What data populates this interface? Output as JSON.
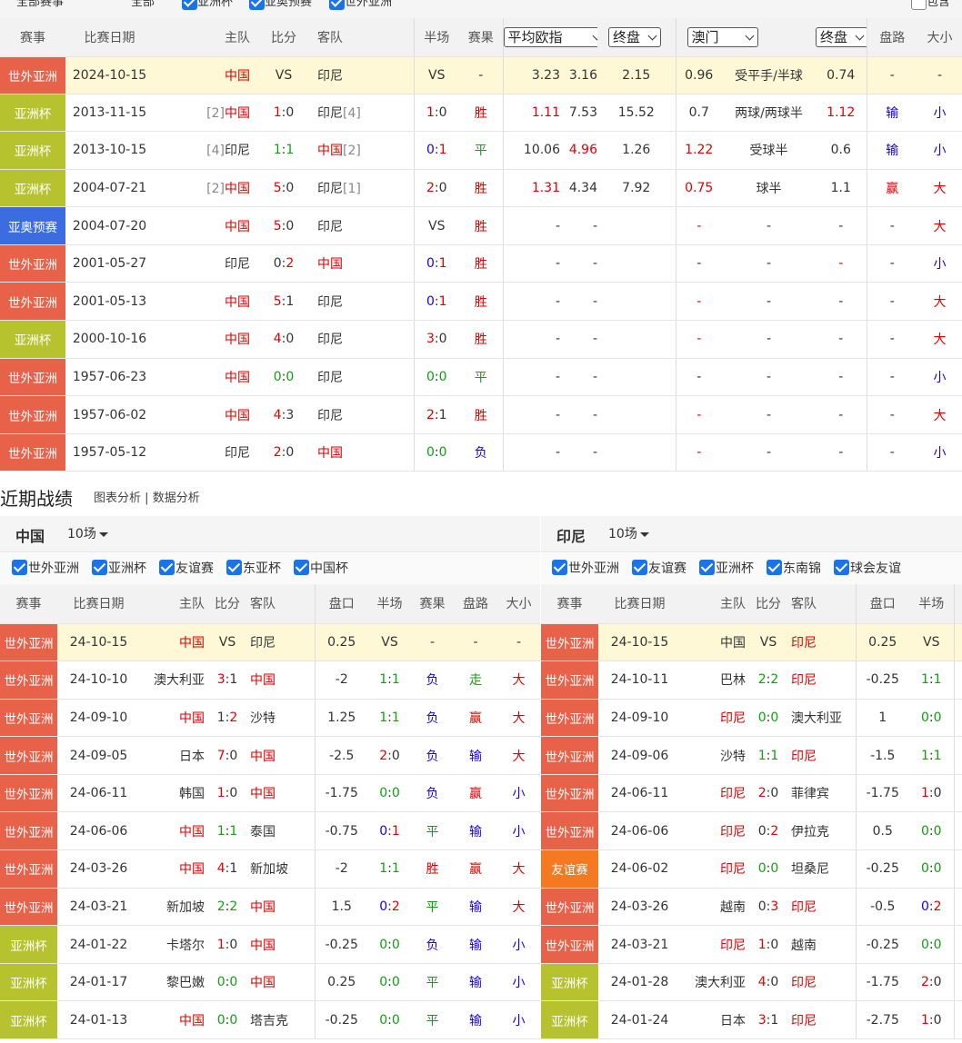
{
  "top_filters": {
    "labels": [
      "全部赛事",
      "全部",
      "亚洲杯",
      "亚奥预赛",
      "世外亚洲",
      "包含"
    ]
  },
  "h2h": {
    "headers": {
      "league": "赛事",
      "date": "比赛日期",
      "home": "主队",
      "score": "比分",
      "away": "客队",
      "half": "半场",
      "result": "赛果",
      "odds_select": "平均欧指",
      "odds_type_1": "终盘",
      "company_select": "澳门",
      "odds_type_2": "终盘",
      "handicap_res": "盘路",
      "ou": "大小"
    },
    "rows": [
      {
        "league": "世外亚洲",
        "date": "2024-10-15",
        "home_rank": "",
        "home": "中国",
        "sh": "VS",
        "sa": "",
        "away": "印尼",
        "away_rank": "",
        "half_h": "VS",
        "half_a": "",
        "result": "-",
        "o1": "3.23",
        "o2": "3.16",
        "o3": "2.15",
        "ah1": "0.96",
        "line": "受平手/半球",
        "ah2": "0.74",
        "hr": "-",
        "ou": "-"
      },
      {
        "league": "亚洲杯",
        "date": "2013-11-15",
        "home_rank": "[2]",
        "home": "中国",
        "sh": "1",
        "sa": "0",
        "away": "印尼",
        "away_rank": "[4]",
        "half_h": "1",
        "half_a": "0",
        "result": "胜",
        "o1": "1.11",
        "o2": "7.53",
        "o3": "15.52",
        "ah1": "0.7",
        "line": "两球/两球半",
        "ah2": "1.12",
        "hr": "输",
        "ou": "小"
      },
      {
        "league": "亚洲杯",
        "date": "2013-10-15",
        "home_rank": "[4]",
        "home": "印尼",
        "sh": "1",
        "sa": "1",
        "away": "中国",
        "away_rank": "[2]",
        "half_h": "0",
        "half_a": "1",
        "result": "平",
        "o1": "10.06",
        "o2": "4.96",
        "o3": "1.26",
        "ah1": "1.22",
        "line": "受球半",
        "ah2": "0.6",
        "hr": "输",
        "ou": "小"
      },
      {
        "league": "亚洲杯",
        "date": "2004-07-21",
        "home_rank": "[2]",
        "home": "中国",
        "sh": "5",
        "sa": "0",
        "away": "印尼",
        "away_rank": "[1]",
        "half_h": "2",
        "half_a": "0",
        "result": "胜",
        "o1": "1.31",
        "o2": "4.34",
        "o3": "7.92",
        "ah1": "0.75",
        "line": "球半",
        "ah2": "1.1",
        "hr": "赢",
        "ou": "大"
      },
      {
        "league": "亚奥预赛",
        "date": "2004-07-20",
        "home_rank": "",
        "home": "中国",
        "sh": "5",
        "sa": "0",
        "away": "印尼",
        "away_rank": "",
        "half_h": "VS",
        "half_a": "",
        "result": "胜",
        "o1": "-",
        "o2": "-",
        "o3": "",
        "ah1": "-",
        "line": "-",
        "ah2": "-",
        "hr": "-",
        "ou": "大"
      },
      {
        "league": "世外亚洲",
        "date": "2001-05-27",
        "home_rank": "",
        "home": "印尼",
        "sh": "0",
        "sa": "2",
        "away": "中国",
        "away_rank": "",
        "half_h": "0",
        "half_a": "1",
        "result": "胜",
        "o1": "-",
        "o2": "-",
        "o3": "",
        "ah1": "-",
        "line": "-",
        "ah2": "-",
        "hr": "-",
        "ou": "小"
      },
      {
        "league": "世外亚洲",
        "date": "2001-05-13",
        "home_rank": "",
        "home": "中国",
        "sh": "5",
        "sa": "1",
        "away": "印尼",
        "away_rank": "",
        "half_h": "0",
        "half_a": "1",
        "result": "胜",
        "o1": "-",
        "o2": "-",
        "o3": "",
        "ah1": "-",
        "line": "-",
        "ah2": "-",
        "hr": "-",
        "ou": "大"
      },
      {
        "league": "亚洲杯",
        "date": "2000-10-16",
        "home_rank": "",
        "home": "中国",
        "sh": "4",
        "sa": "0",
        "away": "印尼",
        "away_rank": "",
        "half_h": "3",
        "half_a": "0",
        "result": "胜",
        "o1": "-",
        "o2": "-",
        "o3": "",
        "ah1": "-",
        "line": "-",
        "ah2": "-",
        "hr": "-",
        "ou": "大"
      },
      {
        "league": "世外亚洲",
        "date": "1957-06-23",
        "home_rank": "",
        "home": "中国",
        "sh": "0",
        "sa": "0",
        "away": "印尼",
        "away_rank": "",
        "half_h": "0",
        "half_a": "0",
        "result": "平",
        "o1": "-",
        "o2": "-",
        "o3": "",
        "ah1": "-",
        "line": "-",
        "ah2": "-",
        "hr": "-",
        "ou": "小"
      },
      {
        "league": "世外亚洲",
        "date": "1957-06-02",
        "home_rank": "",
        "home": "中国",
        "sh": "4",
        "sa": "3",
        "away": "印尼",
        "away_rank": "",
        "half_h": "2",
        "half_a": "1",
        "result": "胜",
        "o1": "-",
        "o2": "-",
        "o3": "",
        "ah1": "-",
        "line": "-",
        "ah2": "-",
        "hr": "-",
        "ou": "大"
      },
      {
        "league": "世外亚洲",
        "date": "1957-05-12",
        "home_rank": "",
        "home": "印尼",
        "sh": "2",
        "sa": "0",
        "away": "中国",
        "away_rank": "",
        "half_h": "0",
        "half_a": "0",
        "result": "负",
        "o1": "-",
        "o2": "-",
        "o3": "",
        "ah1": "-",
        "line": "-",
        "ah2": "-",
        "hr": "-",
        "ou": "小"
      }
    ]
  },
  "recent": {
    "title": "近期战绩",
    "links": [
      "图表分析",
      "数据分析"
    ],
    "link_sep": "|",
    "headers": {
      "league": "赛事",
      "date": "比赛日期",
      "home": "主队",
      "score": "比分",
      "away": "客队",
      "line": "盘口",
      "half": "半场",
      "result": "赛果",
      "hr": "盘路",
      "ou": "大小"
    },
    "left": {
      "team": "中国",
      "count": "10场",
      "filters": [
        "世外亚洲",
        "亚洲杯",
        "友谊赛",
        "东亚杯",
        "中国杯"
      ],
      "rows": [
        {
          "league": "世外亚洲",
          "date": "24-10-15",
          "home": "中国",
          "sh": "VS",
          "sa": "",
          "away": "印尼",
          "line": "0.25",
          "hh": "VS",
          "ha": "",
          "result": "-",
          "hr": "-",
          "ou": "-"
        },
        {
          "league": "世外亚洲",
          "date": "24-10-10",
          "home": "澳大利亚",
          "sh": "3",
          "sa": "1",
          "away": "中国",
          "line": "-2",
          "hh": "1",
          "ha": "1",
          "result": "负",
          "hr": "走",
          "ou": "大"
        },
        {
          "league": "世外亚洲",
          "date": "24-09-10",
          "home": "中国",
          "sh": "1",
          "sa": "2",
          "away": "沙特",
          "line": "1.25",
          "hh": "1",
          "ha": "1",
          "result": "负",
          "hr": "赢",
          "ou": "大"
        },
        {
          "league": "世外亚洲",
          "date": "24-09-05",
          "home": "日本",
          "sh": "7",
          "sa": "0",
          "away": "中国",
          "line": "-2.5",
          "hh": "2",
          "ha": "0",
          "result": "负",
          "hr": "输",
          "ou": "大"
        },
        {
          "league": "世外亚洲",
          "date": "24-06-11",
          "home": "韩国",
          "sh": "1",
          "sa": "0",
          "away": "中国",
          "line": "-1.75",
          "hh": "0",
          "ha": "0",
          "result": "负",
          "hr": "赢",
          "ou": "小"
        },
        {
          "league": "世外亚洲",
          "date": "24-06-06",
          "home": "中国",
          "sh": "1",
          "sa": "1",
          "away": "泰国",
          "line": "-0.75",
          "hh": "0",
          "ha": "1",
          "result": "平",
          "hr": "输",
          "ou": "小"
        },
        {
          "league": "世外亚洲",
          "date": "24-03-26",
          "home": "中国",
          "sh": "4",
          "sa": "1",
          "away": "新加坡",
          "line": "-2",
          "hh": "1",
          "ha": "1",
          "result": "胜",
          "hr": "赢",
          "ou": "大"
        },
        {
          "league": "世外亚洲",
          "date": "24-03-21",
          "home": "新加坡",
          "sh": "2",
          "sa": "2",
          "away": "中国",
          "line": "1.5",
          "hh": "0",
          "ha": "2",
          "result": "平",
          "hr": "输",
          "ou": "大"
        },
        {
          "league": "亚洲杯",
          "date": "24-01-22",
          "home": "卡塔尔",
          "sh": "1",
          "sa": "0",
          "away": "中国",
          "line": "-0.25",
          "hh": "0",
          "ha": "0",
          "result": "负",
          "hr": "输",
          "ou": "小"
        },
        {
          "league": "亚洲杯",
          "date": "24-01-17",
          "home": "黎巴嫩",
          "sh": "0",
          "sa": "0",
          "away": "中国",
          "line": "0.25",
          "hh": "0",
          "ha": "0",
          "result": "平",
          "hr": "输",
          "ou": "小"
        },
        {
          "league": "亚洲杯",
          "date": "24-01-13",
          "home": "中国",
          "sh": "0",
          "sa": "0",
          "away": "塔吉克",
          "line": "-0.25",
          "hh": "0",
          "ha": "0",
          "result": "平",
          "hr": "输",
          "ou": "小"
        }
      ]
    },
    "right": {
      "team": "印尼",
      "count": "10场",
      "filters": [
        "世外亚洲",
        "友谊赛",
        "亚洲杯",
        "东南锦",
        "球会友谊"
      ],
      "rows": [
        {
          "league": "世外亚洲",
          "date": "24-10-15",
          "home": "中国",
          "sh": "VS",
          "sa": "",
          "away": "印尼",
          "line": "0.25",
          "hh": "VS",
          "ha": ""
        },
        {
          "league": "世外亚洲",
          "date": "24-10-11",
          "home": "巴林",
          "sh": "2",
          "sa": "2",
          "away": "印尼",
          "line": "-0.25",
          "hh": "1",
          "ha": "1"
        },
        {
          "league": "世外亚洲",
          "date": "24-09-10",
          "home": "印尼",
          "sh": "0",
          "sa": "0",
          "away": "澳大利亚",
          "line": "1",
          "hh": "0",
          "ha": "0"
        },
        {
          "league": "世外亚洲",
          "date": "24-09-06",
          "home": "沙特",
          "sh": "1",
          "sa": "1",
          "away": "印尼",
          "line": "-1.5",
          "hh": "1",
          "ha": "1"
        },
        {
          "league": "世外亚洲",
          "date": "24-06-11",
          "home": "印尼",
          "sh": "2",
          "sa": "0",
          "away": "菲律宾",
          "line": "-1.75",
          "hh": "1",
          "ha": "0"
        },
        {
          "league": "世外亚洲",
          "date": "24-06-06",
          "home": "印尼",
          "sh": "0",
          "sa": "2",
          "away": "伊拉克",
          "line": "0.5",
          "hh": "0",
          "ha": "0"
        },
        {
          "league": "友谊赛",
          "date": "24-06-02",
          "home": "印尼",
          "sh": "0",
          "sa": "0",
          "away": "坦桑尼",
          "line": "-0.25",
          "hh": "0",
          "ha": "0"
        },
        {
          "league": "世外亚洲",
          "date": "24-03-26",
          "home": "越南",
          "sh": "0",
          "sa": "3",
          "away": "印尼",
          "line": "-0.5",
          "hh": "0",
          "ha": "2"
        },
        {
          "league": "世外亚洲",
          "date": "24-03-21",
          "home": "印尼",
          "sh": "1",
          "sa": "0",
          "away": "越南",
          "line": "-0.25",
          "hh": "0",
          "ha": "0"
        },
        {
          "league": "亚洲杯",
          "date": "24-01-28",
          "home": "澳大利亚",
          "sh": "4",
          "sa": "0",
          "away": "印尼",
          "line": "-1.75",
          "hh": "2",
          "ha": "0"
        },
        {
          "league": "亚洲杯",
          "date": "24-01-24",
          "home": "日本",
          "sh": "3",
          "sa": "1",
          "away": "印尼",
          "line": "-2.75",
          "hh": "1",
          "ha": "0"
        }
      ]
    }
  },
  "colors": {
    "league_wai": "#e8624a",
    "league_yz": "#b6c22e",
    "league_yao": "#3c6de0",
    "league_you": "#f47920",
    "highlight_row": "#fff8d6",
    "win_red": "#e00000",
    "loss_blue": "#1a00e6",
    "draw_green": "#10a010",
    "checkbox": "#1a73e8"
  },
  "icons": [
    "checkbox-checked-icon",
    "checkbox-unchecked-icon",
    "chevron-down-icon",
    "caret-down-icon"
  ]
}
